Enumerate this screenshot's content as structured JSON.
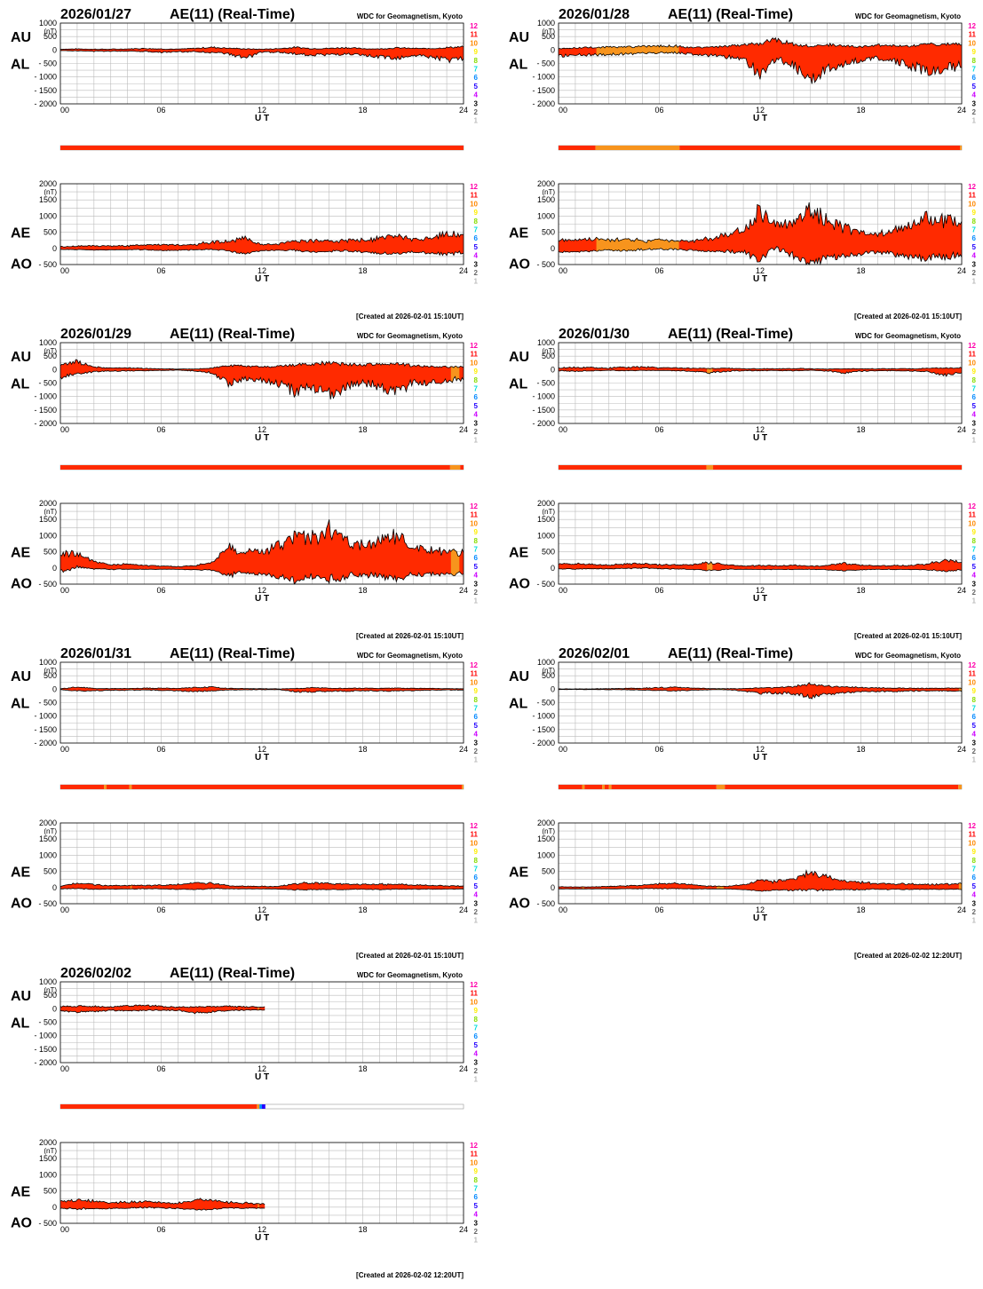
{
  "colors": {
    "fill": "#ff2a00",
    "fill_partial": "#f7941d",
    "outline": "#000000",
    "grid": "#bbbbbb"
  },
  "legend": [
    {
      "label": "12",
      "color": "#ff00aa"
    },
    {
      "label": "11",
      "color": "#ff0000"
    },
    {
      "label": "10",
      "color": "#ff8800"
    },
    {
      "label": "9",
      "color": "#ffee00"
    },
    {
      "label": "8",
      "color": "#88dd00"
    },
    {
      "label": "7",
      "color": "#00dddd"
    },
    {
      "label": "6",
      "color": "#0088ff"
    },
    {
      "label": "5",
      "color": "#2200ff"
    },
    {
      "label": "4",
      "color": "#cc00ff"
    },
    {
      "label": "3",
      "color": "#000000"
    },
    {
      "label": "2",
      "color": "#666666"
    },
    {
      "label": "1",
      "color": "#bbbbbb"
    }
  ],
  "common": {
    "title": "AE(11) (Real-Time)",
    "source": "WDC for Geomagnetism, Kyoto",
    "unit": "(nT)",
    "xlabel": "U T",
    "x_ticks": [
      "00",
      "06",
      "12",
      "18",
      "24"
    ],
    "upper_left_labels": [
      "AU",
      "AL"
    ],
    "lower_left_labels": [
      "AE",
      "AO"
    ],
    "upper_y_ticks": [
      "1000",
      "500",
      "0",
      "- 500",
      "- 1000",
      "- 1500",
      "- 2000"
    ],
    "lower_y_ticks": [
      "2000",
      "1500",
      "1000",
      "500",
      "0",
      "- 500"
    ]
  },
  "chart_data": [
    {
      "type": "area",
      "date": "2026/01/27",
      "created": "[Created at 2026-02-01 15:10UT]",
      "x_range": [
        0,
        24
      ],
      "upper_ylim": [
        -2000,
        1000
      ],
      "lower_ylim": [
        -500,
        2000
      ],
      "data_hours": 24,
      "au": [
        30,
        40,
        30,
        30,
        40,
        60,
        40,
        30,
        60,
        100,
        70,
        40,
        30,
        50,
        100,
        50,
        60,
        90,
        50,
        40,
        80,
        60,
        50,
        90,
        120
      ],
      "al": [
        -20,
        -30,
        -50,
        -40,
        -40,
        -50,
        -80,
        -70,
        -60,
        -90,
        -150,
        -300,
        -80,
        -80,
        -140,
        -180,
        -170,
        -150,
        -220,
        -250,
        -300,
        -200,
        -260,
        -380,
        -300
      ],
      "coverage": [
        {
          "from": 0,
          "to": 24,
          "count": 11
        }
      ]
    },
    {
      "type": "area",
      "date": "2026/01/28",
      "created": "[Created at 2026-02-01 15:10UT]",
      "x_range": [
        0,
        24
      ],
      "upper_ylim": [
        -2000,
        1000
      ],
      "lower_ylim": [
        -500,
        2000
      ],
      "data_hours": 24,
      "au": [
        50,
        80,
        100,
        110,
        110,
        130,
        140,
        150,
        90,
        100,
        150,
        200,
        250,
        400,
        200,
        150,
        200,
        150,
        120,
        170,
        150,
        140,
        200,
        220,
        210
      ],
      "al": [
        -220,
        -200,
        -180,
        -160,
        -150,
        -120,
        -110,
        -100,
        -150,
        -200,
        -250,
        -350,
        -900,
        -300,
        -600,
        -1000,
        -700,
        -500,
        -350,
        -300,
        -450,
        -600,
        -750,
        -650,
        -600
      ],
      "coverage": [
        {
          "from": 0,
          "to": 2.2,
          "count": 11
        },
        {
          "from": 2.2,
          "to": 7.2,
          "count": 10
        },
        {
          "from": 7.2,
          "to": 23.9,
          "count": 11
        },
        {
          "from": 23.9,
          "to": 24,
          "count": 10
        }
      ]
    },
    {
      "type": "area",
      "date": "2026/01/29",
      "created": "[Created at 2026-02-01 15:10UT]",
      "x_range": [
        0,
        24
      ],
      "upper_ylim": [
        -2000,
        1000
      ],
      "lower_ylim": [
        -500,
        2000
      ],
      "data_hours": 24,
      "au": [
        150,
        300,
        100,
        50,
        60,
        40,
        30,
        20,
        20,
        60,
        150,
        130,
        100,
        120,
        180,
        220,
        250,
        200,
        180,
        200,
        220,
        150,
        120,
        100,
        100
      ],
      "al": [
        -300,
        -150,
        -80,
        -60,
        -50,
        -40,
        -30,
        -20,
        -50,
        -120,
        -500,
        -350,
        -400,
        -550,
        -800,
        -700,
        -900,
        -650,
        -500,
        -600,
        -800,
        -500,
        -450,
        -400,
        -350
      ],
      "coverage": [
        {
          "from": 0,
          "to": 23.2,
          "count": 11
        },
        {
          "from": 23.2,
          "to": 23.8,
          "count": 10
        },
        {
          "from": 23.8,
          "to": 24,
          "count": 11
        }
      ]
    },
    {
      "type": "area",
      "date": "2026/01/30",
      "created": "[Created at 2026-02-01 15:10UT]",
      "x_range": [
        0,
        24
      ],
      "upper_ylim": [
        -2000,
        1000
      ],
      "lower_ylim": [
        -500,
        2000
      ],
      "data_hours": 24,
      "au": [
        60,
        80,
        70,
        60,
        90,
        100,
        70,
        60,
        50,
        40,
        50,
        30,
        30,
        30,
        40,
        30,
        20,
        30,
        30,
        30,
        30,
        30,
        50,
        60,
        70
      ],
      "al": [
        -50,
        -60,
        -40,
        -30,
        -40,
        -30,
        -30,
        -40,
        -60,
        -120,
        -60,
        -40,
        -40,
        -40,
        -40,
        -30,
        -50,
        -120,
        -60,
        -40,
        -40,
        -50,
        -80,
        -200,
        -100
      ],
      "coverage": [
        {
          "from": 0,
          "to": 8.8,
          "count": 11
        },
        {
          "from": 8.8,
          "to": 9.2,
          "count": 10
        },
        {
          "from": 9.2,
          "to": 24,
          "count": 11
        }
      ]
    },
    {
      "type": "area",
      "date": "2026/01/31",
      "created": "[Created at 2026-02-01 15:10UT]",
      "x_range": [
        0,
        24
      ],
      "upper_ylim": [
        -2000,
        1000
      ],
      "lower_ylim": [
        -500,
        2000
      ],
      "data_hours": 24,
      "au": [
        20,
        80,
        30,
        20,
        30,
        40,
        40,
        30,
        60,
        80,
        30,
        20,
        20,
        10,
        30,
        50,
        40,
        30,
        40,
        30,
        40,
        30,
        30,
        20,
        20
      ],
      "al": [
        -20,
        -60,
        -60,
        -40,
        -40,
        -30,
        -40,
        -60,
        -80,
        -60,
        -30,
        -20,
        -20,
        -20,
        -90,
        -100,
        -80,
        -70,
        -60,
        -70,
        -60,
        -50,
        -40,
        -30,
        -30
      ],
      "coverage": [
        {
          "from": 0,
          "to": 2.6,
          "count": 11
        },
        {
          "from": 2.6,
          "to": 2.75,
          "count": 10
        },
        {
          "from": 2.75,
          "to": 4.1,
          "count": 11
        },
        {
          "from": 4.1,
          "to": 4.25,
          "count": 10
        },
        {
          "from": 4.25,
          "to": 23.9,
          "count": 11
        },
        {
          "from": 23.9,
          "to": 24,
          "count": 10
        }
      ]
    },
    {
      "type": "area",
      "date": "2026/02/01",
      "created": "[Created at 2026-02-02 12:20UT]",
      "x_range": [
        0,
        24
      ],
      "upper_ylim": [
        -2000,
        1000
      ],
      "lower_ylim": [
        -500,
        2000
      ],
      "data_hours": 24,
      "au": [
        10,
        10,
        10,
        20,
        30,
        40,
        60,
        70,
        40,
        20,
        20,
        20,
        50,
        60,
        100,
        200,
        120,
        80,
        60,
        50,
        40,
        40,
        30,
        40,
        40
      ],
      "al": [
        -10,
        -10,
        -10,
        -20,
        -20,
        -30,
        -50,
        -60,
        -40,
        -20,
        -20,
        -60,
        -150,
        -140,
        -160,
        -300,
        -200,
        -120,
        -100,
        -80,
        -80,
        -70,
        -60,
        -60,
        -70
      ],
      "coverage": [
        {
          "from": 0,
          "to": 1.4,
          "count": 11
        },
        {
          "from": 1.4,
          "to": 1.55,
          "count": 10
        },
        {
          "from": 1.55,
          "to": 2.6,
          "count": 11
        },
        {
          "from": 2.6,
          "to": 2.75,
          "count": 10
        },
        {
          "from": 2.75,
          "to": 3.0,
          "count": 11
        },
        {
          "from": 3.0,
          "to": 3.15,
          "count": 10
        },
        {
          "from": 3.15,
          "to": 9.4,
          "count": 11
        },
        {
          "from": 9.4,
          "to": 9.9,
          "count": 10
        },
        {
          "from": 9.9,
          "to": 23.8,
          "count": 11
        },
        {
          "from": 23.8,
          "to": 24,
          "count": 10
        }
      ]
    },
    {
      "type": "area",
      "date": "2026/02/02",
      "created": "[Created at 2026-02-02 12:20UT]",
      "x_range": [
        0,
        24
      ],
      "upper_ylim": [
        -2000,
        1000
      ],
      "lower_ylim": [
        -500,
        2000
      ],
      "data_hours": 12.2,
      "au": [
        80,
        100,
        90,
        70,
        100,
        120,
        90,
        60,
        70,
        80,
        90,
        70,
        60
      ],
      "al": [
        -80,
        -120,
        -100,
        -60,
        -70,
        -60,
        -50,
        -60,
        -150,
        -120,
        -60,
        -50,
        -40
      ],
      "coverage": [
        {
          "from": 0,
          "to": 11.7,
          "count": 11
        },
        {
          "from": 11.7,
          "to": 11.85,
          "count": 10
        },
        {
          "from": 11.85,
          "to": 12.0,
          "count": 6
        },
        {
          "from": 12.0,
          "to": 12.2,
          "count": 5
        }
      ]
    }
  ]
}
